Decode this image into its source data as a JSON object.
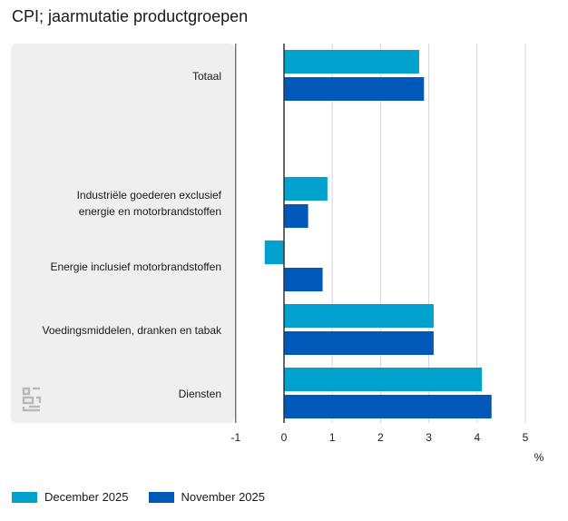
{
  "chart_data": {
    "type": "bar",
    "orientation": "horizontal",
    "title": "CPI; jaarmutatie productgroepen",
    "unit_label": "%",
    "xlim": [
      -1,
      5
    ],
    "xticks": [
      "-1",
      "0",
      "1",
      "2",
      "3",
      "4",
      "5"
    ],
    "categories": [
      [
        "Totaal"
      ],
      [
        "Industriële goederen exclusief",
        "energie en motorbrandstoffen"
      ],
      [
        "Energie inclusief motorbrandstoffen"
      ],
      [
        "Voedingsmiddelen, dranken en tabak"
      ],
      [
        "Diensten"
      ]
    ],
    "series": [
      {
        "name": "December 2025",
        "color": "#00a1cd",
        "values": [
          2.8,
          0.9,
          -0.4,
          3.1,
          4.1
        ]
      },
      {
        "name": "November 2025",
        "color": "#0058b8",
        "values": [
          2.9,
          0.5,
          0.8,
          3.1,
          4.3
        ]
      }
    ]
  },
  "logo_text": "cbs"
}
